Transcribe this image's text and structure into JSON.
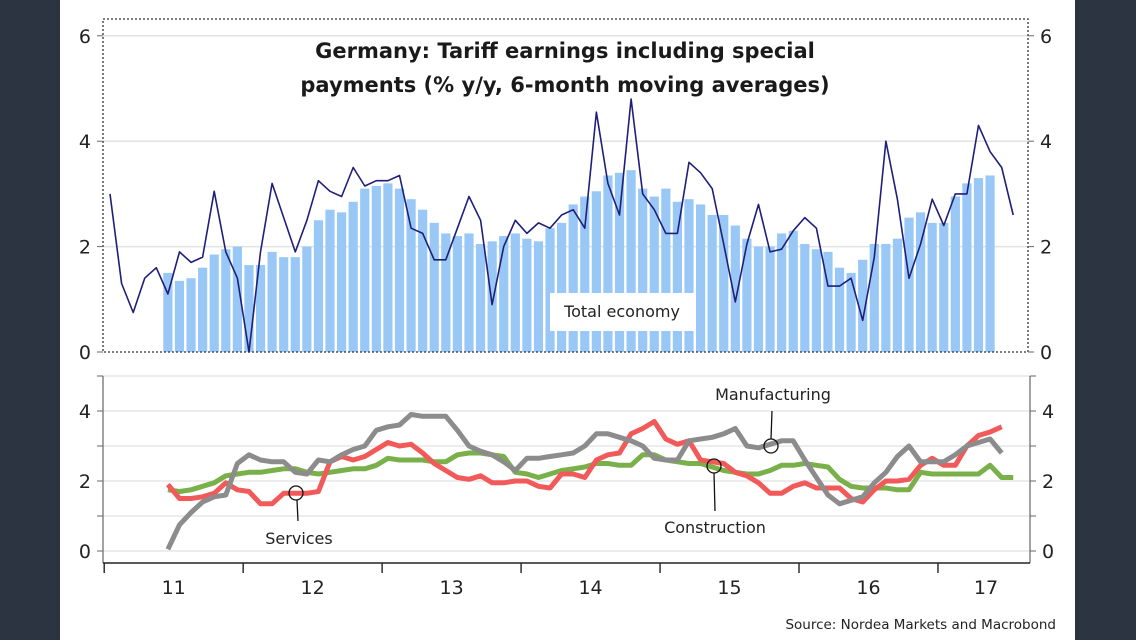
{
  "chart_data": [
    {
      "type": "bar",
      "panel": "top",
      "title": "Germany: Tariff earnings including special payments (% y/y, 6-month moving averages)",
      "title_lines": [
        "Germany: Tariff earnings including special",
        "payments (% y/y, 6-month moving averages)"
      ],
      "xlabel": "",
      "ylabel": "",
      "ylim": [
        0,
        6
      ],
      "yticks": [
        0,
        2,
        4,
        6
      ],
      "ytick_labels": [
        "0",
        "2",
        "4",
        "6"
      ],
      "x_start": "2011-01",
      "frequency": "monthly",
      "grid": true,
      "annotation": "Total economy",
      "series": [
        {
          "name": "Total economy (6-month moving average)",
          "kind": "bar",
          "color": "#99c8f7",
          "start_index": 5,
          "values": [
            1.5,
            1.35,
            1.4,
            1.6,
            1.85,
            1.95,
            2.0,
            1.65,
            1.65,
            1.9,
            1.8,
            1.8,
            2.0,
            2.5,
            2.7,
            2.65,
            2.85,
            3.1,
            3.15,
            3.2,
            3.1,
            2.9,
            2.7,
            2.45,
            2.25,
            2.2,
            2.25,
            2.05,
            2.1,
            2.2,
            2.25,
            2.15,
            2.1,
            2.35,
            2.45,
            2.8,
            2.95,
            3.05,
            3.35,
            3.4,
            3.45,
            3.1,
            2.95,
            3.1,
            2.85,
            2.9,
            2.8,
            2.6,
            2.6,
            2.4,
            2.15,
            2.0,
            2.0,
            2.25,
            2.3,
            2.05,
            1.95,
            1.9,
            1.6,
            1.5,
            1.75,
            2.05,
            2.05,
            2.15,
            2.55,
            2.65,
            2.45,
            2.45,
            2.95,
            3.2,
            3.3,
            3.35
          ]
        },
        {
          "name": "Total economy (monthly)",
          "kind": "line",
          "color": "#1f1f7a",
          "start_index": 0,
          "values": [
            3.0,
            1.3,
            0.75,
            1.4,
            1.6,
            1.1,
            1.9,
            1.7,
            1.8,
            3.05,
            1.9,
            1.4,
            0.0,
            1.9,
            3.2,
            2.55,
            1.9,
            2.5,
            3.25,
            3.05,
            2.95,
            3.5,
            3.15,
            3.25,
            3.25,
            3.35,
            2.35,
            2.25,
            1.75,
            1.75,
            2.35,
            2.95,
            2.5,
            0.9,
            2.0,
            2.5,
            2.25,
            2.45,
            2.35,
            2.6,
            2.7,
            2.35,
            4.55,
            3.2,
            2.6,
            4.8,
            3.0,
            2.7,
            2.25,
            2.25,
            3.6,
            3.4,
            3.1,
            2.05,
            0.95,
            2.05,
            2.8,
            1.9,
            1.95,
            2.3,
            2.55,
            2.35,
            1.25,
            1.25,
            1.4,
            0.6,
            1.8,
            4.0,
            2.9,
            1.4,
            2.05,
            2.9,
            2.4,
            3.0,
            3.0,
            4.3,
            3.8,
            3.5,
            2.6
          ]
        }
      ]
    },
    {
      "type": "line",
      "panel": "bottom",
      "xlabel": "",
      "ylabel": "",
      "ylim": [
        0,
        5
      ],
      "yticks": [
        0,
        2,
        4
      ],
      "ytick_labels": [
        "0",
        "2",
        "4"
      ],
      "x_categories": [
        "11",
        "12",
        "13",
        "14",
        "15",
        "16",
        "17"
      ],
      "x_start": "2011-01",
      "frequency": "monthly",
      "grid": true,
      "series": [
        {
          "name": "Services",
          "color": "#f25a5a",
          "start_index": 5,
          "values": [
            1.9,
            1.5,
            1.5,
            1.55,
            1.65,
            1.95,
            1.75,
            1.7,
            1.35,
            1.35,
            1.65,
            1.65,
            1.65,
            1.7,
            2.55,
            2.7,
            2.6,
            2.7,
            2.9,
            3.1,
            3.0,
            3.05,
            2.8,
            2.5,
            2.3,
            2.1,
            2.05,
            2.15,
            1.95,
            1.95,
            2.0,
            2.0,
            1.85,
            1.8,
            2.2,
            2.2,
            2.1,
            2.6,
            2.75,
            2.8,
            3.35,
            3.5,
            3.7,
            3.2,
            3.05,
            3.15,
            2.6,
            2.55,
            2.5,
            2.25,
            2.15,
            1.95,
            1.65,
            1.65,
            1.85,
            1.95,
            1.8,
            1.8,
            1.8,
            1.5,
            1.4,
            1.75,
            2.0,
            2.0,
            2.05,
            2.45,
            2.65,
            2.45,
            2.45,
            3.0,
            3.3,
            3.4,
            3.55
          ]
        },
        {
          "name": "Construction",
          "color": "#7ab04a",
          "start_index": 5,
          "values": [
            1.75,
            1.7,
            1.75,
            1.85,
            1.95,
            2.15,
            2.2,
            2.25,
            2.25,
            2.3,
            2.35,
            2.35,
            2.25,
            2.2,
            2.25,
            2.3,
            2.35,
            2.35,
            2.45,
            2.65,
            2.6,
            2.6,
            2.6,
            2.55,
            2.55,
            2.75,
            2.8,
            2.8,
            2.75,
            2.7,
            2.25,
            2.2,
            2.1,
            2.2,
            2.3,
            2.35,
            2.4,
            2.5,
            2.5,
            2.45,
            2.45,
            2.75,
            2.75,
            2.6,
            2.55,
            2.5,
            2.5,
            2.4,
            2.3,
            2.25,
            2.2,
            2.2,
            2.3,
            2.45,
            2.45,
            2.5,
            2.45,
            2.4,
            2.05,
            1.85,
            1.8,
            1.8,
            1.8,
            1.75,
            1.75,
            2.25,
            2.2,
            2.2,
            2.2,
            2.2,
            2.2,
            2.45,
            2.1,
            2.1
          ]
        },
        {
          "name": "Manufacturing",
          "color": "#8c8c8c",
          "start_index": 5,
          "values": [
            0.05,
            0.75,
            1.1,
            1.4,
            1.55,
            1.6,
            2.5,
            2.75,
            2.6,
            2.55,
            2.55,
            2.25,
            2.2,
            2.6,
            2.55,
            2.75,
            2.9,
            3.0,
            3.45,
            3.55,
            3.6,
            3.9,
            3.85,
            3.85,
            3.85,
            3.45,
            3.0,
            2.85,
            2.75,
            2.55,
            2.3,
            2.65,
            2.65,
            2.7,
            2.75,
            2.8,
            3.0,
            3.35,
            3.35,
            3.25,
            3.15,
            3.0,
            2.65,
            2.6,
            2.6,
            3.15,
            3.2,
            3.25,
            3.35,
            3.5,
            3.0,
            2.95,
            3.05,
            3.15,
            3.15,
            2.6,
            2.1,
            1.6,
            1.35,
            1.45,
            1.55,
            1.95,
            2.25,
            2.7,
            3.0,
            2.55,
            2.55,
            2.55,
            2.75,
            3.0,
            3.1,
            3.2,
            2.8
          ]
        }
      ],
      "annotations": [
        {
          "label": "Services",
          "series": "Services"
        },
        {
          "label": "Construction",
          "series": "Construction"
        },
        {
          "label": "Manufacturing",
          "series": "Manufacturing"
        }
      ]
    }
  ],
  "source": "Source: Nordea Markets and Macrobond"
}
